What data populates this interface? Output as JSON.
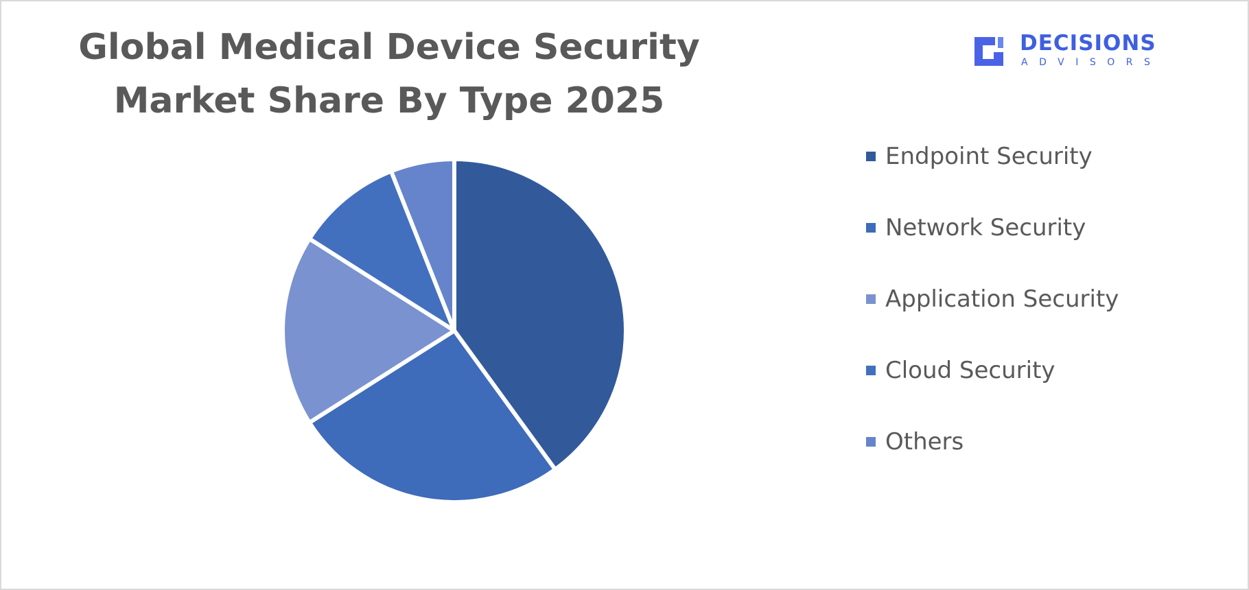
{
  "chart_data": {
    "type": "pie",
    "title": "Global Medical Device Security Market Share By Type 2025",
    "categories": [
      "Endpoint Security",
      "Network Security",
      "Application Security",
      "Cloud Security",
      "Others"
    ],
    "values": [
      40,
      26,
      18,
      10,
      6
    ],
    "colors": [
      "#325a9b",
      "#3e6bba",
      "#7a92d0",
      "#4270bf",
      "#6584cc"
    ],
    "legend_position": "right",
    "start_angle_deg": 0,
    "direction": "clockwise"
  },
  "brand": {
    "word": "DECISIONS",
    "sub": "ADVISORS",
    "icon": "decisions-advisors-logo-icon",
    "color": "#3f5fe0"
  }
}
